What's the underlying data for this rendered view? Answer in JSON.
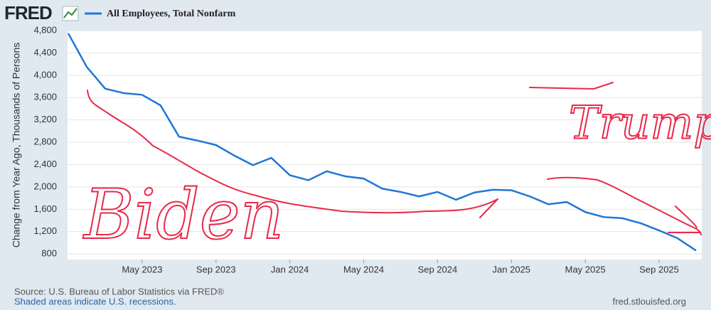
{
  "logo": "FRED",
  "chart_data": {
    "type": "line",
    "y_label": "Change from Year Ago, Thousands of Persons",
    "x": [
      "2023-01",
      "2023-02",
      "2023-03",
      "2023-04",
      "2023-05",
      "2023-06",
      "2023-07",
      "2023-08",
      "2023-09",
      "2023-10",
      "2023-11",
      "2023-12",
      "2024-01",
      "2024-02",
      "2024-03",
      "2024-04",
      "2024-05",
      "2024-06",
      "2024-07",
      "2024-08",
      "2024-09",
      "2024-10",
      "2024-11",
      "2024-12",
      "2025-01",
      "2025-02",
      "2025-03",
      "2025-04",
      "2025-05",
      "2025-06",
      "2025-07",
      "2025-08",
      "2025-09",
      "2025-10",
      "2025-11"
    ],
    "series": [
      {
        "name": "All Employees, Total Nonfarm",
        "color": "#1f77d4",
        "values": [
          4750,
          4150,
          3760,
          3680,
          3650,
          3460,
          2900,
          2830,
          2750,
          2560,
          2390,
          2520,
          2210,
          2120,
          2280,
          2190,
          2150,
          1970,
          1910,
          1830,
          1910,
          1770,
          1900,
          1950,
          1940,
          1830,
          1690,
          1730,
          1550,
          1460,
          1440,
          1350,
          1220,
          1080,
          860
        ]
      }
    ],
    "xlim": [
      "2023-01",
      "2025-11"
    ],
    "xticks": [
      {
        "value": "2023-05",
        "label": "May 2023"
      },
      {
        "value": "2023-09",
        "label": "Sep 2023"
      },
      {
        "value": "2024-01",
        "label": "Jan 2024"
      },
      {
        "value": "2024-05",
        "label": "May 2024"
      },
      {
        "value": "2024-09",
        "label": "Sep 2024"
      },
      {
        "value": "2025-01",
        "label": "Jan 2025"
      },
      {
        "value": "2025-05",
        "label": "May 2025"
      },
      {
        "value": "2025-09",
        "label": "Sep 2025"
      }
    ],
    "ylim": [
      700,
      4800
    ],
    "yticks": [
      {
        "value": 800,
        "label": "800"
      },
      {
        "value": 1200,
        "label": "1,200"
      },
      {
        "value": 1600,
        "label": "1,600"
      },
      {
        "value": 2000,
        "label": "2,000"
      },
      {
        "value": 2400,
        "label": "2,400"
      },
      {
        "value": 2800,
        "label": "2,800"
      },
      {
        "value": 3200,
        "label": "3,200"
      },
      {
        "value": 3600,
        "label": "3,600"
      },
      {
        "value": 4000,
        "label": "4,000"
      },
      {
        "value": 4400,
        "label": "4,400"
      },
      {
        "value": 4800,
        "label": "4,800"
      }
    ],
    "grid": true,
    "annotations": [
      "Biden",
      "Trump"
    ]
  },
  "footer": {
    "source": "Source: U.S. Bureau of Labor Statistics via FRED®",
    "note": "Shaded areas indicate U.S. recessions.",
    "site": "fred.stlouisfed.org"
  }
}
